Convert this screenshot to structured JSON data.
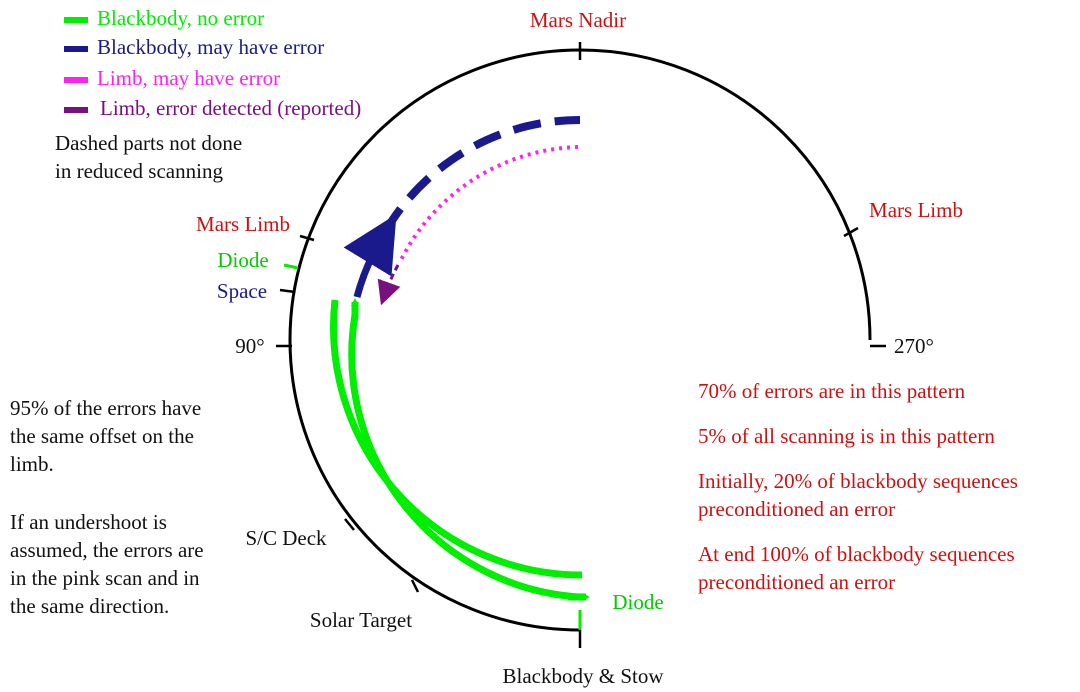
{
  "legend": [
    {
      "label": "Blackbody, no error",
      "color": "#00ee00"
    },
    {
      "label": "Blackbody, may have error",
      "color": "#1a1a8c"
    },
    {
      "label": "Limb, may have error",
      "color": "#ff22ee"
    },
    {
      "label": "Limb, error detected (reported)",
      "color": "#7a1080"
    }
  ],
  "note": [
    "Dashed parts not done",
    "in reduced scanning"
  ],
  "positions": {
    "mars_nadir": "Mars Nadir",
    "mars_limb_right": "Mars Limb",
    "mars_limb_left": "Mars Limb",
    "diode_left": "Diode",
    "space": "Space",
    "deg90": "90°",
    "deg270": "270°",
    "sc_deck": "S/C Deck",
    "solar_target": "Solar Target",
    "blackbody_stow": "Blackbody & Stow",
    "diode_bottom": "Diode"
  },
  "left_notes": [
    [
      "95% of the errors have",
      "the same offset on the",
      "limb."
    ],
    [
      "If an undershoot is",
      "assumed, the errors are",
      "in the pink scan and in",
      "the same direction."
    ]
  ],
  "right_notes": [
    [
      "70% of errors are in this pattern"
    ],
    [
      "5% of all scanning is in this pattern"
    ],
    [
      "Initially, 20% of blackbody sequences",
      "preconditioned an error"
    ],
    [
      "At end 100% of blackbody sequences",
      "preconditioned an error"
    ]
  ]
}
